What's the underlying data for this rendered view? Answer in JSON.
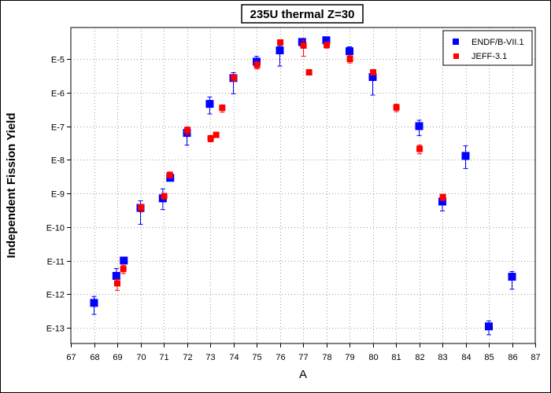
{
  "chart_data": {
    "type": "scatter",
    "title": "235U thermal Z=30",
    "xlabel": "A",
    "ylabel": "Independent Fission Yield",
    "xlim": [
      67,
      87
    ],
    "x_ticks": [
      "67",
      "68",
      "69",
      "70",
      "71",
      "72",
      "73",
      "74",
      "75",
      "76",
      "77",
      "78",
      "79",
      "80",
      "81",
      "82",
      "83",
      "84",
      "85",
      "86",
      "87"
    ],
    "y_scale": "log",
    "ylim": [
      1e-13,
      0.0001
    ],
    "y_ticks": [
      {
        "value": 1e-05,
        "label": "E-5"
      },
      {
        "value": 1e-06,
        "label": "E-6"
      },
      {
        "value": 1e-07,
        "label": "E-7"
      },
      {
        "value": 1e-08,
        "label": "E-8"
      },
      {
        "value": 1e-09,
        "label": "E-9"
      },
      {
        "value": 1e-10,
        "label": "E-10"
      },
      {
        "value": 1e-11,
        "label": "E-11"
      },
      {
        "value": 1e-12,
        "label": "E-12"
      },
      {
        "value": 1e-13,
        "label": "E-13"
      }
    ],
    "grid": true,
    "legend_position": "top-right",
    "series": [
      {
        "name": "ENDF/B-VII.1",
        "color": "#0000ff",
        "marker": "square",
        "points": [
          {
            "x": 68,
            "y": 5.5e-13,
            "y_low": 2.5e-13,
            "y_high": 8.5e-13
          },
          {
            "x": 68.96,
            "y": 3.5e-12,
            "y_low": 2.1e-12,
            "y_high": 5.8e-12
          },
          {
            "x": 69.28,
            "y": 1e-11
          },
          {
            "x": 70,
            "y": 3.7e-10,
            "y_low": 1.2e-10,
            "y_high": 6e-10
          },
          {
            "x": 70.96,
            "y": 7.1e-10,
            "y_low": 3.3e-10,
            "y_high": 1.35e-09
          },
          {
            "x": 71.28,
            "y": 2.9e-09,
            "y_low": 2.3e-09,
            "y_high": 4.3e-09
          },
          {
            "x": 72,
            "y": 6.3e-08,
            "y_low": 2.7e-08,
            "y_high": 8.1e-08
          },
          {
            "x": 72.98,
            "y": 4.6e-07,
            "y_low": 2.3e-07,
            "y_high": 7.4e-07
          },
          {
            "x": 74,
            "y": 2.7e-06,
            "y_low": 9.2e-07,
            "y_high": 3.9e-06
          },
          {
            "x": 75,
            "y": 8.3e-06,
            "y_low": 5.5e-06,
            "y_high": 1.2e-05
          },
          {
            "x": 76,
            "y": 1.8e-05,
            "y_low": 6.1e-06,
            "y_high": 2.5e-05
          },
          {
            "x": 76.96,
            "y": 3.2e-05,
            "y_low": 2.4e-05,
            "y_high": 4e-05
          },
          {
            "x": 78,
            "y": 3.6e-05,
            "y_low": 2.4e-05,
            "y_high": 4.5e-05
          },
          {
            "x": 79,
            "y": 1.7e-05,
            "y_low": 1.2e-05,
            "y_high": 2.3e-05
          },
          {
            "x": 80,
            "y": 2.9e-06,
            "y_low": 8.4e-07,
            "y_high": 4.1e-06
          },
          {
            "x": 82,
            "y": 1e-07,
            "y_low": 5.2e-08,
            "y_high": 1.5e-07
          },
          {
            "x": 83,
            "y": 5.7e-10,
            "y_low": 3e-10,
            "y_high": 7.9e-10
          },
          {
            "x": 84,
            "y": 1.3e-08,
            "y_low": 5.5e-09,
            "y_high": 2.6e-08
          },
          {
            "x": 85,
            "y": 1.1e-13,
            "y_low": 6.2e-14,
            "y_high": 1.6e-13
          },
          {
            "x": 86,
            "y": 3.3e-12,
            "y_low": 1.4e-12,
            "y_high": 4.7e-12
          }
        ]
      },
      {
        "name": "JEFF-3.1",
        "color": "#ff0000",
        "marker": "square",
        "points": [
          {
            "x": 69,
            "y": 2.1e-12,
            "y_low": 1.3e-12,
            "y_high": 2.8e-12
          },
          {
            "x": 69.26,
            "y": 5.6e-12,
            "y_low": 4.1e-12,
            "y_high": 7.2e-12
          },
          {
            "x": 70.02,
            "y": 3.8e-10,
            "y_low": 2.8e-10,
            "y_high": 4.7e-10
          },
          {
            "x": 71.02,
            "y": 8.3e-10,
            "y_low": 6.7e-10,
            "y_high": 1e-09
          },
          {
            "x": 71.26,
            "y": 3.5e-09,
            "y_low": 2.9e-09,
            "y_high": 4.3e-09
          },
          {
            "x": 72.02,
            "y": 7.5e-08,
            "y_low": 5.5e-08,
            "y_high": 9.5e-08
          },
          {
            "x": 73.02,
            "y": 4.3e-08,
            "y_low": 3.4e-08,
            "y_high": 5.3e-08
          },
          {
            "x": 73.26,
            "y": 5.5e-08,
            "y_low": 4.6e-08,
            "y_high": 6.5e-08
          },
          {
            "x": 73.52,
            "y": 3.5e-07,
            "y_low": 2.6e-07,
            "y_high": 4.3e-07
          },
          {
            "x": 74.02,
            "y": 2.8e-06,
            "y_low": 2.2e-06,
            "y_high": 3.4e-06
          },
          {
            "x": 75.02,
            "y": 6.6e-06,
            "y_low": 5e-06,
            "y_high": 8.3e-06
          },
          {
            "x": 76.02,
            "y": 3.1e-05,
            "y_low": 2.6e-05,
            "y_high": 3.6e-05
          },
          {
            "x": 77.02,
            "y": 2.5e-05,
            "y_low": 1.2e-05,
            "y_high": 3.6e-05
          },
          {
            "x": 77.26,
            "y": 4e-06,
            "y_low": 3.4e-06,
            "y_high": 4.8e-06
          },
          {
            "x": 78.02,
            "y": 2.6e-05,
            "y_low": 2.1e-05,
            "y_high": 3.1e-05
          },
          {
            "x": 79.02,
            "y": 1e-05,
            "y_low": 7.6e-06,
            "y_high": 1.3e-05
          },
          {
            "x": 80.02,
            "y": 4e-06,
            "y_low": 3.4e-06,
            "y_high": 4.8e-06
          },
          {
            "x": 81.02,
            "y": 3.6e-07,
            "y_low": 2.7e-07,
            "y_high": 4.5e-07
          },
          {
            "x": 82.02,
            "y": 2.1e-08,
            "y_low": 1.5e-08,
            "y_high": 2.7e-08
          },
          {
            "x": 83.02,
            "y": 7.7e-10,
            "y_low": 6.1e-10,
            "y_high": 9.4e-10
          }
        ]
      }
    ]
  }
}
